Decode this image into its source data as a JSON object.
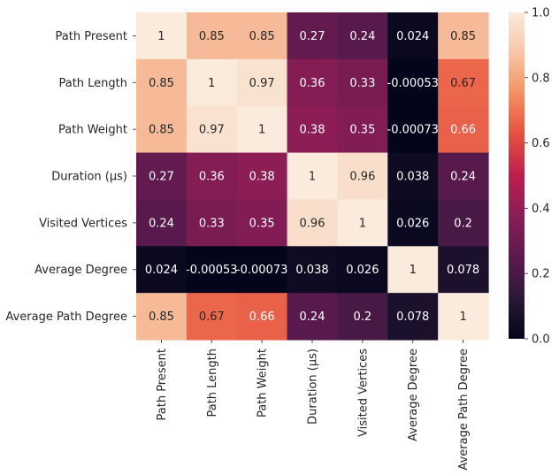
{
  "chart_data": {
    "type": "heatmap",
    "row_labels": [
      "Path Present",
      "Path Length",
      "Path Weight",
      "Duration (µs)",
      "Visited Vertices",
      "Average Degree",
      "Average Path Degree"
    ],
    "col_labels": [
      "Path Present",
      "Path Length",
      "Path Weight",
      "Duration (µs)",
      "Visited Vertices",
      "Average Degree",
      "Average Path Degree"
    ],
    "values": [
      [
        1,
        0.85,
        0.85,
        0.27,
        0.24,
        0.024,
        0.85
      ],
      [
        0.85,
        1,
        0.97,
        0.36,
        0.33,
        -0.00053,
        0.67
      ],
      [
        0.85,
        0.97,
        1,
        0.38,
        0.35,
        -0.00073,
        0.66
      ],
      [
        0.27,
        0.36,
        0.38,
        1,
        0.96,
        0.038,
        0.24
      ],
      [
        0.24,
        0.33,
        0.35,
        0.96,
        1,
        0.026,
        0.2
      ],
      [
        0.024,
        -0.00053,
        -0.00073,
        0.038,
        0.026,
        1,
        0.078
      ],
      [
        0.85,
        0.67,
        0.66,
        0.24,
        0.2,
        0.078,
        1
      ]
    ],
    "annotations": [
      [
        "1",
        "0.85",
        "0.85",
        "0.27",
        "0.24",
        "0.024",
        "0.85"
      ],
      [
        "0.85",
        "1",
        "0.97",
        "0.36",
        "0.33",
        "-0.00053",
        "0.67"
      ],
      [
        "0.85",
        "0.97",
        "1",
        "0.38",
        "0.35",
        "-0.00073",
        "0.66"
      ],
      [
        "0.27",
        "0.36",
        "0.38",
        "1",
        "0.96",
        "0.038",
        "0.24"
      ],
      [
        "0.24",
        "0.33",
        "0.35",
        "0.96",
        "1",
        "0.026",
        "0.2"
      ],
      [
        "0.024",
        "-0.00053",
        "-0.00073",
        "0.038",
        "0.026",
        "1",
        "0.078"
      ],
      [
        "0.85",
        "0.67",
        "0.66",
        "0.24",
        "0.2",
        "0.078",
        "1"
      ]
    ],
    "colorbar": {
      "range": [
        0.0,
        1.0
      ],
      "ticks": [
        0.0,
        0.2,
        0.4,
        0.6,
        0.8,
        1.0
      ],
      "tick_labels": [
        "0.0",
        "0.2",
        "0.4",
        "0.6",
        "0.8",
        "1.0"
      ],
      "colormap": "rocket"
    },
    "colormap_stops": [
      "#03051a",
      "#2b1838",
      "#5c1a4e",
      "#8a1d55",
      "#bd1e4d",
      "#e54f3f",
      "#f59061",
      "#f7c5a6",
      "#faebdd"
    ],
    "annotation_colors": {
      "on_dark": "#ffffff",
      "on_light": "#262626"
    }
  }
}
